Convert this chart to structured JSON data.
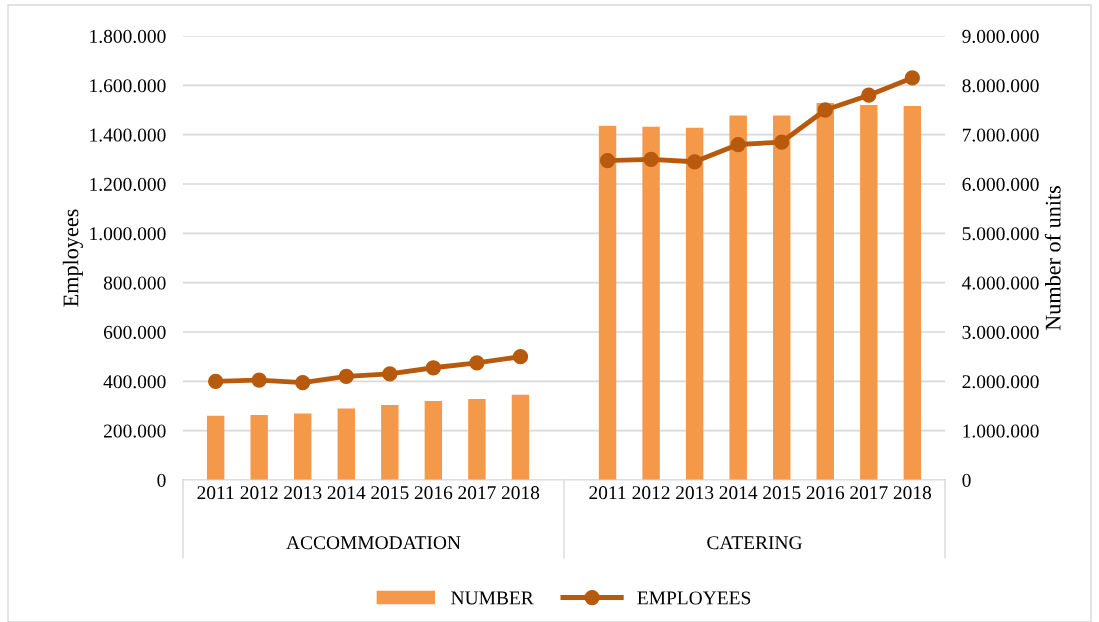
{
  "chart_data": {
    "type": "bar",
    "categories": [
      "2011",
      "2012",
      "2013",
      "2014",
      "2015",
      "2016",
      "2017",
      "2018",
      null,
      "2011",
      "2012",
      "2013",
      "2014",
      "2015",
      "2016",
      "2017",
      "2018"
    ],
    "series": [
      {
        "name": "NUMBER",
        "axis": "y2",
        "color": "#f4984a",
        "values": [
          1300000,
          1320000,
          1350000,
          1450000,
          1520000,
          1600000,
          1640000,
          1730000,
          null,
          7180000,
          7160000,
          7140000,
          7390000,
          7390000,
          7640000,
          7600000,
          7580000
        ]
      },
      {
        "name": "EMPLOYEES",
        "type": "line",
        "axis": "y",
        "color": "#b85a0e",
        "marker": "circle",
        "values": [
          400000,
          405000,
          395000,
          420000,
          430000,
          455000,
          475000,
          500000,
          null,
          1295000,
          1300000,
          1290000,
          1360000,
          1370000,
          1500000,
          1560000,
          1630000
        ]
      }
    ],
    "ylabel": "Employees",
    "y2label": "Number of units",
    "ylim": [
      0,
      1800000
    ],
    "yticks": [
      0,
      {
        "value": 200000,
        "label": "200.000"
      },
      {
        "value": 400000,
        "label": "400.000"
      },
      {
        "value": 600000,
        "label": "600.000"
      },
      {
        "value": 800000,
        "label": "800.000"
      },
      {
        "value": 1000000,
        "label": "1.000.000"
      },
      {
        "value": 1200000,
        "label": "1.200.000"
      },
      {
        "value": 1400000,
        "label": "1.400.000"
      },
      {
        "value": 1600000,
        "label": "1.600.000"
      },
      {
        "value": 1800000,
        "label": "1.800.000"
      }
    ],
    "y2lim": [
      0,
      9000000
    ],
    "y2ticks": [
      0,
      {
        "value": 1000000,
        "label": "1.000.000"
      },
      {
        "value": 2000000,
        "label": "2.000.000"
      },
      {
        "value": 3000000,
        "label": "3.000.000"
      },
      {
        "value": 4000000,
        "label": "4.000.000"
      },
      {
        "value": 5000000,
        "label": "5.000.000"
      },
      {
        "value": 6000000,
        "label": "6.000.000"
      },
      {
        "value": 7000000,
        "label": "7.000.000"
      },
      {
        "value": 8000000,
        "label": "8.000.000"
      },
      {
        "value": 9000000,
        "label": "9.000.000"
      }
    ],
    "annotations": [
      "ACCOMMODATION",
      "CATERING"
    ],
    "grid": "y",
    "legend": "bottom"
  }
}
